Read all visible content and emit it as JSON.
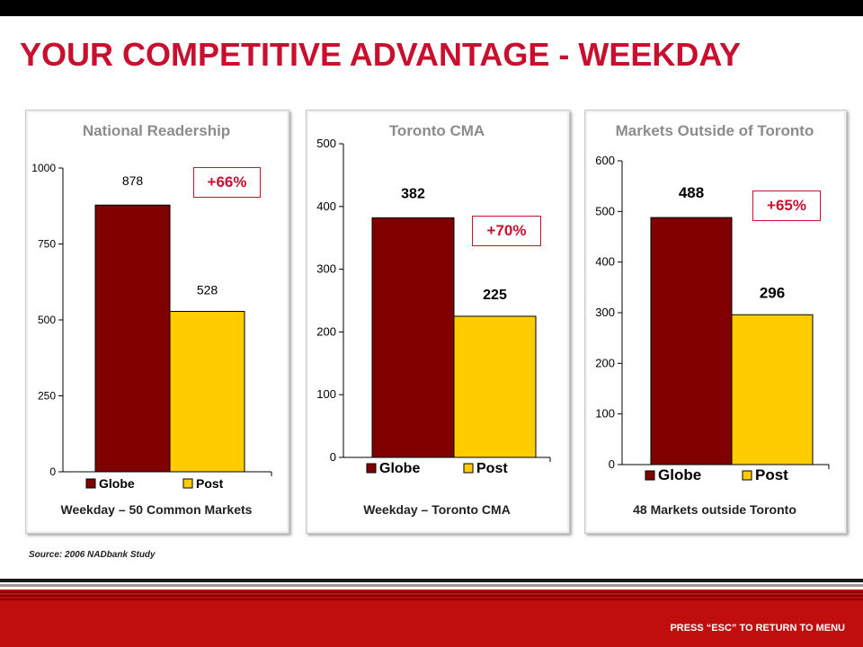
{
  "slide": {
    "title": "YOUR COMPETITIVE ADVANTAGE - WEEKDAY",
    "source": "Source: 2006  NADbank Study",
    "footer_hint": "PRESS “ESC” TO RETURN TO MENU"
  },
  "colors": {
    "title": "#c8102e",
    "globe": "#800000",
    "post": "#ffcc00",
    "callout": "#c8102e",
    "band": "#c00d0d"
  },
  "chart_data": [
    {
      "type": "bar",
      "title": "National Readership",
      "xlabel": "Weekday – 50 Common Markets",
      "categories": [
        "Globe",
        "Post"
      ],
      "values": [
        878,
        528
      ],
      "value_labels": [
        "878",
        "528"
      ],
      "ylim": [
        0,
        1000
      ],
      "yticks": [
        0,
        250,
        500,
        750,
        1000
      ],
      "callout": "+66%",
      "legend": [
        "Globe",
        "Post"
      ],
      "legend_position": "bottom",
      "grid": false
    },
    {
      "type": "bar",
      "title": "Toronto CMA",
      "xlabel": "Weekday – Toronto CMA",
      "categories": [
        "Globe",
        "Post"
      ],
      "values": [
        382,
        225
      ],
      "value_labels": [
        "382",
        "225"
      ],
      "ylim": [
        0,
        500
      ],
      "yticks": [
        0,
        100,
        200,
        300,
        400,
        500
      ],
      "callout": "+70%",
      "legend": [
        "Globe",
        "Post"
      ],
      "legend_position": "bottom",
      "grid": false
    },
    {
      "type": "bar",
      "title": "Markets Outside of Toronto",
      "xlabel": "48 Markets outside Toronto",
      "categories": [
        "Globe",
        "Post"
      ],
      "values": [
        488,
        296
      ],
      "value_labels": [
        "488",
        "296"
      ],
      "ylim": [
        0,
        600
      ],
      "yticks": [
        0,
        100,
        200,
        300,
        400,
        500,
        600
      ],
      "callout": "+65%",
      "legend": [
        "Globe",
        "Post"
      ],
      "legend_position": "bottom",
      "grid": false
    }
  ]
}
